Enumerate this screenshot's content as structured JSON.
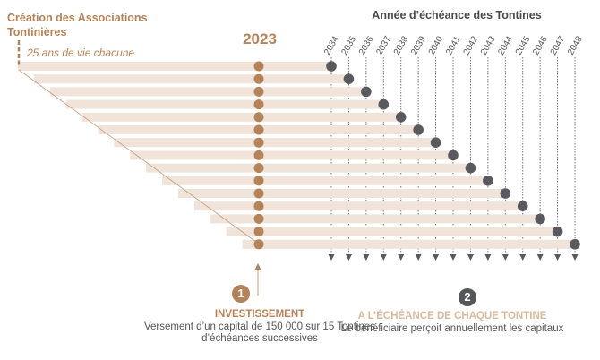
{
  "header": {
    "left_title": "Création des Associations Tontinières",
    "left_subtitle": "25 ans de vie chacune",
    "right_title": "Année d’échéance des Tontines",
    "current_year": "2023"
  },
  "maturity_years": [
    "2034",
    "2035",
    "2036",
    "2037",
    "2038",
    "2039",
    "2040",
    "2041",
    "2042",
    "2043",
    "2044",
    "2045",
    "2046",
    "2047",
    "2048"
  ],
  "step1": {
    "number": "1",
    "title": "INVESTISSEMENT",
    "text": "Versement d’un capital de 150 000 sur 15 Tontines d’échéances successives"
  },
  "step2": {
    "number": "2",
    "title": "A L’ÉCHÉANCE DE CHAQUE TONTINE",
    "text": "Le bénéficiaire perçoit annuellement les capitaux"
  },
  "colors": {
    "orange": "#b5835a",
    "bar": "#efe3da",
    "dark": "#5a5a5e",
    "light_orange": "#d9b99b"
  }
}
